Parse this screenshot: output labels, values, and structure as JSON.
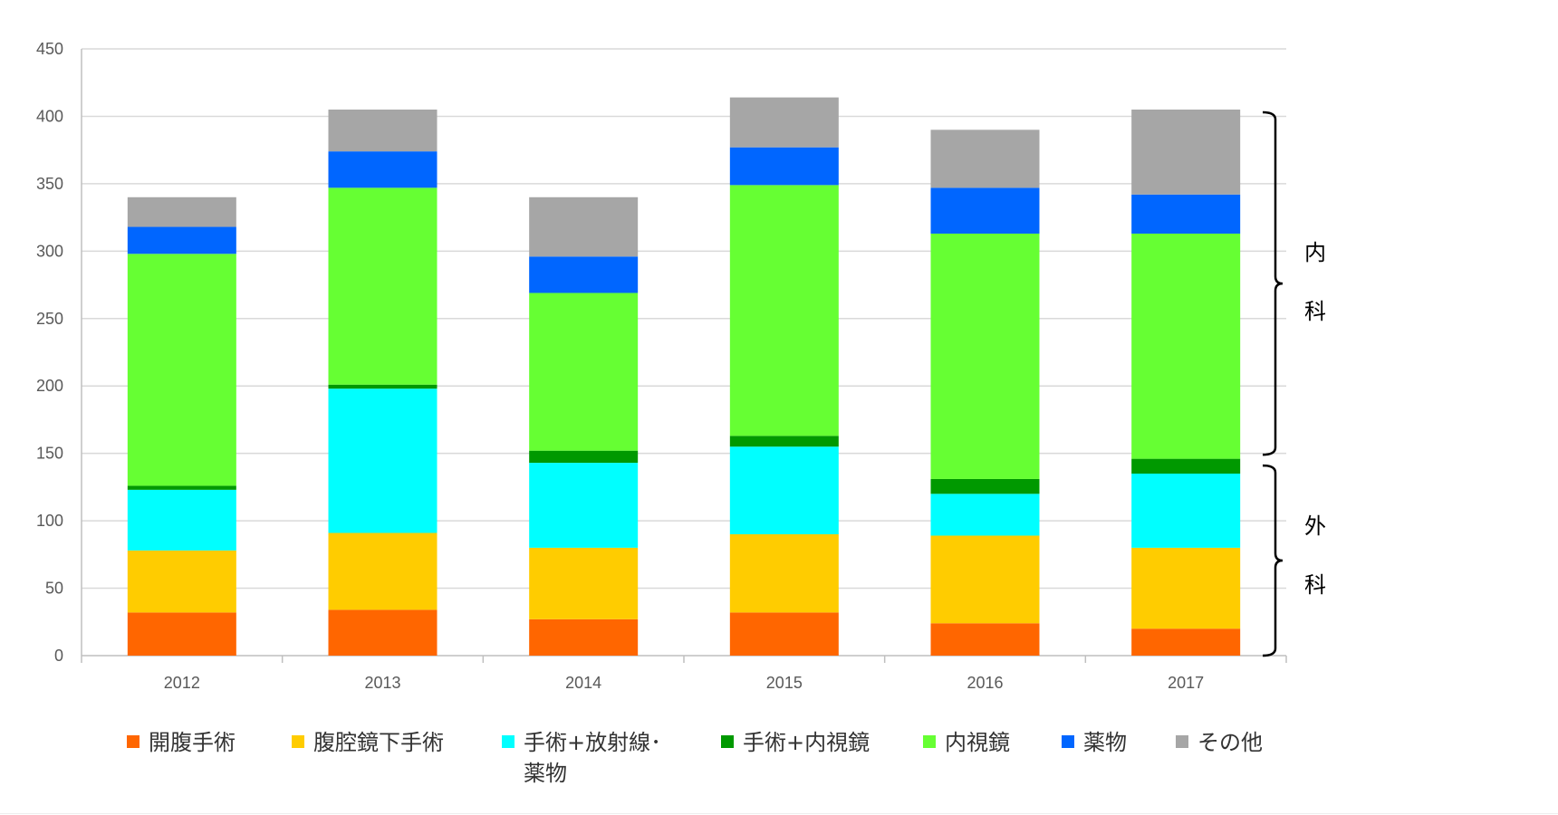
{
  "chart_data": {
    "type": "bar",
    "stacked": true,
    "categories": [
      "2012",
      "2013",
      "2014",
      "2015",
      "2016",
      "2017"
    ],
    "ylim": [
      0,
      450
    ],
    "yticks": [
      "0",
      "50",
      "100",
      "150",
      "200",
      "250",
      "300",
      "350",
      "400",
      "450"
    ],
    "grid": true,
    "legend_position": "bottom",
    "series": [
      {
        "name": "開腹手術",
        "color": "#ff6600",
        "values": [
          32,
          34,
          27,
          32,
          24,
          20
        ]
      },
      {
        "name": "腹腔鏡下手術",
        "color": "#ffcc00",
        "values": [
          46,
          57,
          53,
          58,
          65,
          60
        ]
      },
      {
        "name": "手術+放射線・薬物",
        "legend_lines": [
          "手術+放射線･",
          "薬物"
        ],
        "color": "#00ffff",
        "values": [
          45,
          107,
          63,
          65,
          31,
          55
        ]
      },
      {
        "name": "手術+内視鏡",
        "color": "#009900",
        "values": [
          3,
          3,
          9,
          8,
          11,
          11
        ]
      },
      {
        "name": "内視鏡",
        "color": "#66ff33",
        "values": [
          172,
          146,
          117,
          186,
          182,
          167
        ]
      },
      {
        "name": "薬物",
        "color": "#0066ff",
        "values": [
          20,
          27,
          27,
          28,
          34,
          29
        ]
      },
      {
        "name": "その他",
        "color": "#a6a6a6",
        "values": [
          22,
          31,
          44,
          37,
          43,
          63
        ]
      }
    ],
    "annotations": {
      "internal_label": [
        "内",
        "科"
      ],
      "surgical_label": [
        "外",
        "科"
      ]
    }
  }
}
